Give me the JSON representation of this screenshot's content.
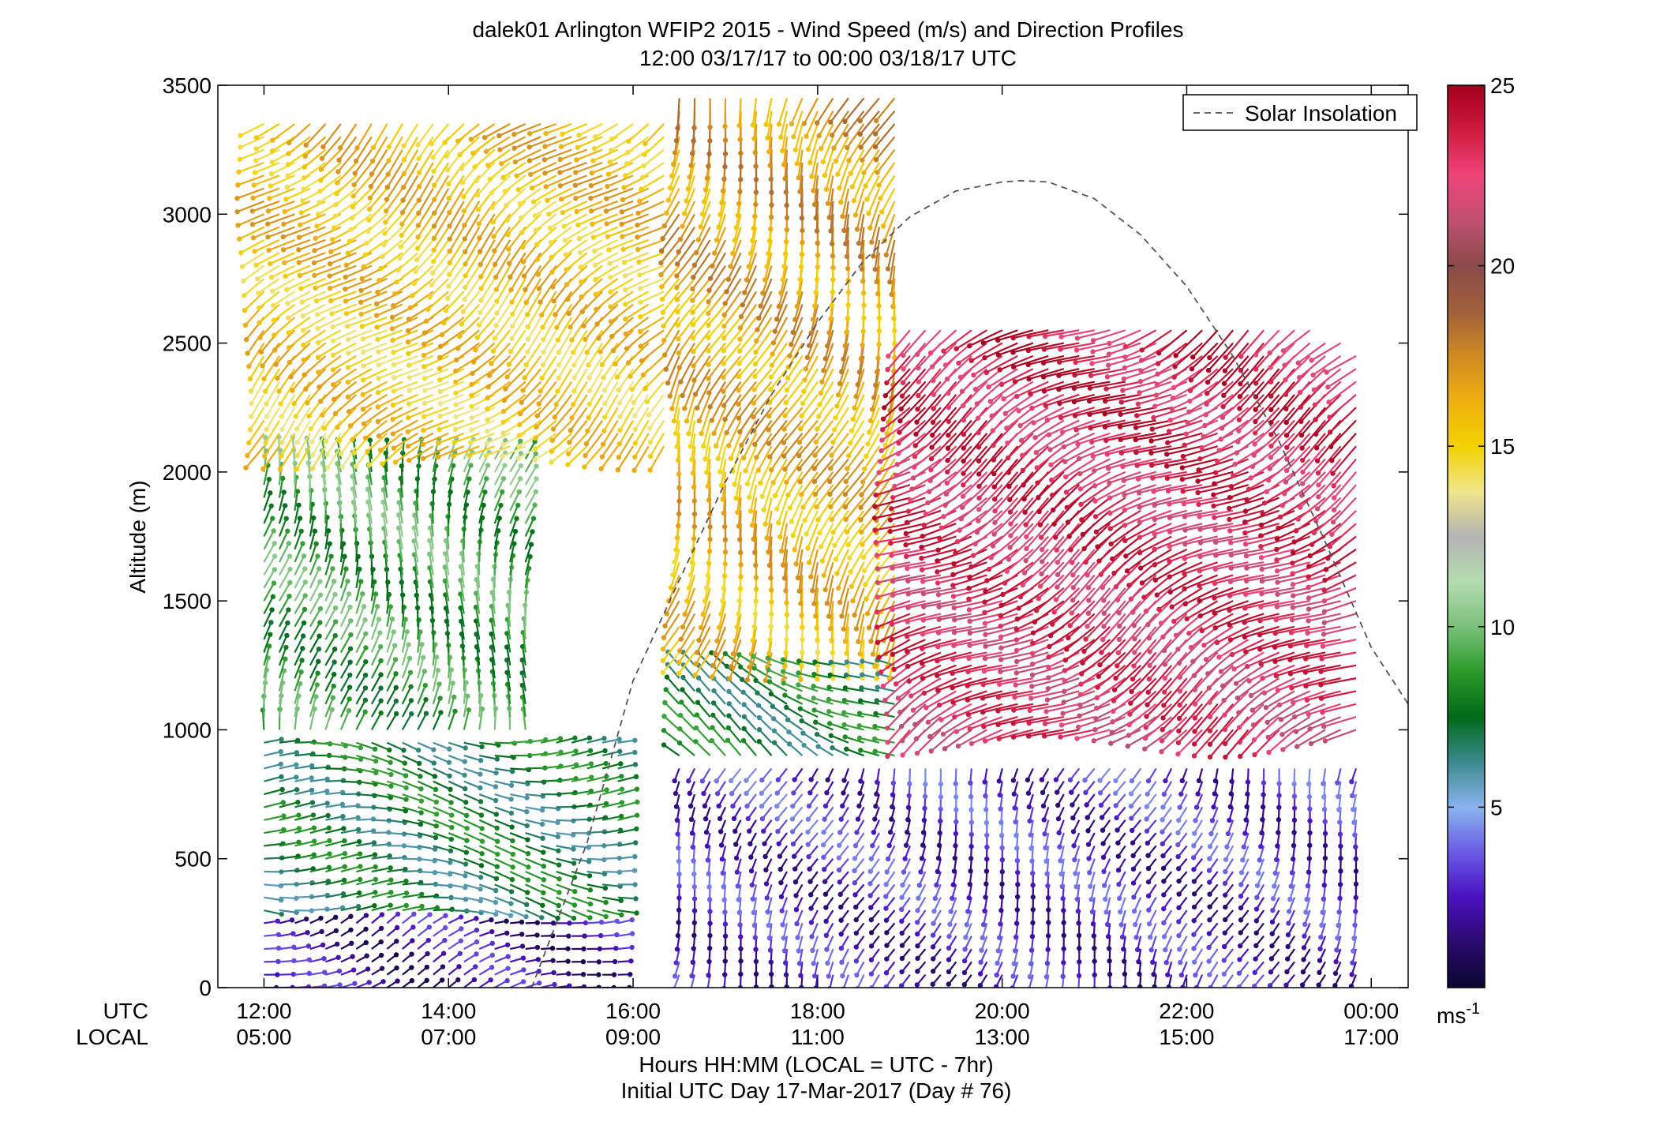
{
  "chart_data": {
    "type": "scatter",
    "title": "dalek01 Arlington WFIP2 2015 - Wind Speed (m/s) and Direction Profiles",
    "subtitle": "12:00 03/17/17 to 00:00 03/18/17  UTC",
    "ylabel": "Altitude (m)",
    "xlabel": "Hours HH:MM  (LOCAL = UTC - 7hr)",
    "xlabel2": "Initial UTC Day 17-Mar-2017 (Day # 76)",
    "ylim": [
      0,
      3500
    ],
    "xlim_hours": [
      11.5,
      24.4
    ],
    "y_ticks": [
      0,
      500,
      1000,
      1500,
      2000,
      2500,
      3000,
      3500
    ],
    "x_ticks": [
      {
        "utc": "12:00",
        "local": "05:00",
        "hour": 12
      },
      {
        "utc": "14:00",
        "local": "07:00",
        "hour": 14
      },
      {
        "utc": "16:00",
        "local": "09:00",
        "hour": 16
      },
      {
        "utc": "18:00",
        "local": "11:00",
        "hour": 18
      },
      {
        "utc": "20:00",
        "local": "13:00",
        "hour": 20
      },
      {
        "utc": "22:00",
        "local": "15:00",
        "hour": 22
      },
      {
        "utc": "00:00",
        "local": "17:00",
        "hour": 24
      }
    ],
    "row_labels": {
      "utc": "UTC",
      "local": "LOCAL"
    },
    "legend": {
      "label": "Solar Insolation",
      "position": "top-right"
    },
    "colorbar": {
      "range": [
        0,
        25
      ],
      "ticks": [
        5,
        10,
        15,
        20,
        25
      ],
      "unit_base": "ms",
      "unit_exp": "-1",
      "colors": [
        "#0a0630",
        "#2a0a6e",
        "#4a10c0",
        "#6a5ae6",
        "#8ab4f0",
        "#3a8a8e",
        "#006a18",
        "#2a9a2a",
        "#7ac07a",
        "#b4dcb0",
        "#b4b4b4",
        "#f0e68a",
        "#f2d200",
        "#f0b010",
        "#d08a20",
        "#a0603a",
        "#8a4a4a",
        "#c05070",
        "#f0447a",
        "#d01a40",
        "#a0001a"
      ]
    },
    "solar_insolation_series": {
      "hours": [
        14.9,
        15.5,
        16.0,
        16.5,
        17.0,
        17.5,
        18.0,
        18.5,
        19.0,
        19.5,
        20.0,
        20.2,
        20.5,
        21.0,
        21.5,
        22.0,
        22.5,
        23.0,
        23.5,
        24.0,
        24.4
      ],
      "altitude_equiv": [
        0,
        560,
        1190,
        1580,
        1960,
        2300,
        2580,
        2820,
        2990,
        3090,
        3125,
        3130,
        3125,
        3060,
        2920,
        2720,
        2450,
        2120,
        1730,
        1320,
        1100
      ]
    },
    "wind_profiles": {
      "hours_start": 12.0,
      "hours_end": 24.0,
      "hours_step": 0.1667,
      "altitude_step_m": 50,
      "regimes": [
        {
          "name_note_free": "",
          "hours": [
            12,
            16
          ],
          "alt": [
            0,
            300
          ],
          "speed": 2,
          "dir_deg": 70
        },
        {
          "hours": [
            12,
            16
          ],
          "alt": [
            300,
            1000
          ],
          "speed": 7,
          "dir_deg": 95
        },
        {
          "hours": [
            12,
            15
          ],
          "alt": [
            1000,
            2100
          ],
          "speed": 8,
          "dir_deg": 10
        },
        {
          "hours": [
            12,
            16.5
          ],
          "alt": [
            2100,
            3400
          ],
          "speed": 14,
          "dir_deg": 230
        },
        {
          "hours": [
            16.5,
            24
          ],
          "alt": [
            0,
            900
          ],
          "speed": 2.5,
          "dir_deg": 200
        },
        {
          "hours": [
            16.5,
            19
          ],
          "alt": [
            900,
            1300
          ],
          "speed": 7,
          "dir_deg": 300
        },
        {
          "hours": [
            16.5,
            19
          ],
          "alt": [
            1300,
            3500
          ],
          "speed": 15,
          "dir_deg": 200
        },
        {
          "hours": [
            19,
            24
          ],
          "alt": [
            1000,
            2600
          ],
          "speed": 22,
          "dir_deg": 240
        }
      ]
    }
  }
}
